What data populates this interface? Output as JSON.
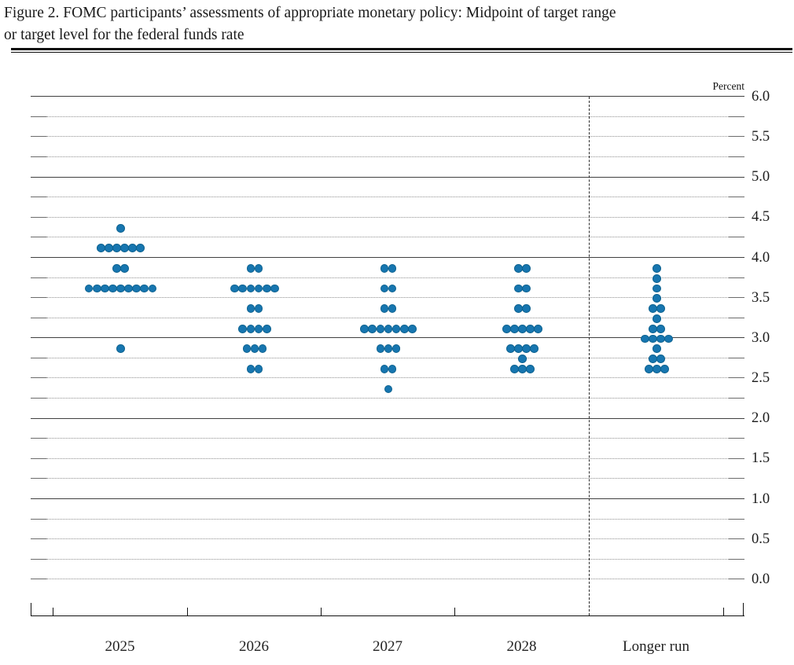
{
  "title": {
    "line1": "Figure 2. FOMC participants’ assessments of appropriate monetary policy: Midpoint of target range",
    "line2": "or target level for the federal funds rate"
  },
  "chart_data": {
    "type": "scatter",
    "title": "FOMC participants’ assessments of appropriate monetary policy: Midpoint of target range or target level for the federal funds rate",
    "ylabel": "Percent",
    "xlabel": "",
    "ylim": [
      0.0,
      6.0
    ],
    "gridline_step": 0.25,
    "solid_gridline_values": [
      6.0,
      5.0,
      4.0,
      3.0,
      2.0,
      1.0
    ],
    "ytick_label_step": 0.5,
    "ytick_labels": [
      "6.0",
      "5.5",
      "5.0",
      "4.5",
      "4.0",
      "3.5",
      "3.0",
      "2.5",
      "2.0",
      "1.5",
      "1.0",
      "0.5",
      "0.0"
    ],
    "legend_position": "none",
    "grid": "on",
    "categories": [
      "2025",
      "2026",
      "2027",
      "2028",
      "Longer run"
    ],
    "dot_color": "#1776b0",
    "dot_edge_color": "#0e628f",
    "series": [
      {
        "category": "2025",
        "dots": [
          {
            "rate": 4.375,
            "count": 1
          },
          {
            "rate": 4.125,
            "count": 6
          },
          {
            "rate": 3.875,
            "count": 2
          },
          {
            "rate": 3.625,
            "count": 9
          },
          {
            "rate": 2.875,
            "count": 1
          }
        ]
      },
      {
        "category": "2026",
        "dots": [
          {
            "rate": 3.875,
            "count": 2
          },
          {
            "rate": 3.625,
            "count": 6
          },
          {
            "rate": 3.375,
            "count": 2
          },
          {
            "rate": 3.125,
            "count": 4
          },
          {
            "rate": 2.875,
            "count": 3
          },
          {
            "rate": 2.625,
            "count": 2
          }
        ]
      },
      {
        "category": "2027",
        "dots": [
          {
            "rate": 3.875,
            "count": 2
          },
          {
            "rate": 3.625,
            "count": 2
          },
          {
            "rate": 3.375,
            "count": 2
          },
          {
            "rate": 3.125,
            "count": 7
          },
          {
            "rate": 2.875,
            "count": 3
          },
          {
            "rate": 2.625,
            "count": 2
          },
          {
            "rate": 2.375,
            "count": 1
          }
        ]
      },
      {
        "category": "2028",
        "dots": [
          {
            "rate": 3.875,
            "count": 2
          },
          {
            "rate": 3.625,
            "count": 2
          },
          {
            "rate": 3.375,
            "count": 2
          },
          {
            "rate": 3.125,
            "count": 5
          },
          {
            "rate": 2.875,
            "count": 4
          },
          {
            "rate": 2.75,
            "count": 1
          },
          {
            "rate": 2.625,
            "count": 3
          }
        ]
      },
      {
        "category": "Longer run",
        "dots": [
          {
            "rate": 3.875,
            "count": 1
          },
          {
            "rate": 3.75,
            "count": 1
          },
          {
            "rate": 3.625,
            "count": 1
          },
          {
            "rate": 3.5,
            "count": 1
          },
          {
            "rate": 3.375,
            "count": 2
          },
          {
            "rate": 3.25,
            "count": 1
          },
          {
            "rate": 3.125,
            "count": 2
          },
          {
            "rate": 3.0,
            "count": 4
          },
          {
            "rate": 2.875,
            "count": 1
          },
          {
            "rate": 2.75,
            "count": 2
          },
          {
            "rate": 2.625,
            "count": 3
          }
        ]
      }
    ]
  }
}
